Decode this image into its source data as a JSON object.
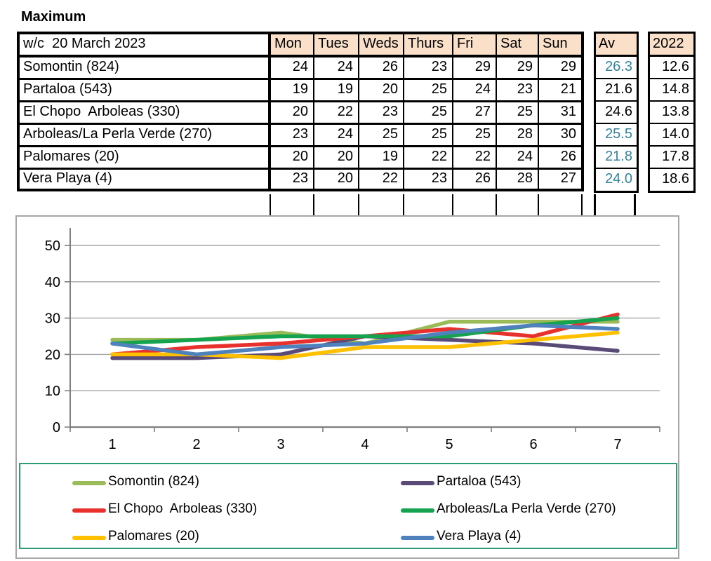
{
  "title": "Maximum",
  "colors": {
    "header_fill": "#fadfc9",
    "table_border": "#000000",
    "teal_value": "#31849b",
    "chart_border": "#a6a6a6",
    "gridline": "#a6a6a6",
    "axis": "#7f7f7f",
    "legend_border": "#2e9c72"
  },
  "table": {
    "week_label": "w/c  20 March 2023",
    "day_headers": [
      "Mon",
      "Tues",
      "Weds",
      "Thurs",
      "Fri",
      "Sat",
      "Sun"
    ],
    "av_header": "Av",
    "prev_year_header": "2022",
    "rows": [
      {
        "name": "Somontin (824)",
        "values": [
          "24",
          "24",
          "26",
          "23",
          "29",
          "29",
          "29"
        ],
        "av": "26.3",
        "av_teal": true,
        "prev": "12.6"
      },
      {
        "name": "Partaloa (543)",
        "values": [
          "19",
          "19",
          "20",
          "25",
          "24",
          "23",
          "21"
        ],
        "av": "21.6",
        "av_teal": false,
        "prev": "14.8"
      },
      {
        "name": "El Chopo  Arboleas (330)",
        "values": [
          "20",
          "22",
          "23",
          "25",
          "27",
          "25",
          "31"
        ],
        "av": "24.6",
        "av_teal": false,
        "prev": "13.8"
      },
      {
        "name": "Arboleas/La Perla Verde (270)",
        "values": [
          "23",
          "24",
          "25",
          "25",
          "25",
          "28",
          "30"
        ],
        "av": "25.5",
        "av_teal": true,
        "prev": "14.0"
      },
      {
        "name": "Palomares (20)",
        "values": [
          "20",
          "20",
          "19",
          "22",
          "22",
          "24",
          "26"
        ],
        "av": "21.8",
        "av_teal": true,
        "prev": "17.8"
      },
      {
        "name": "Vera Playa (4)",
        "values": [
          "23",
          "20",
          "22",
          "23",
          "26",
          "28",
          "27"
        ],
        "av": "24.0",
        "av_teal": true,
        "prev": "18.6"
      }
    ]
  },
  "chart_data": {
    "type": "line",
    "x": [
      1,
      2,
      3,
      4,
      5,
      6,
      7
    ],
    "x_tick_labels": [
      "1",
      "2",
      "3",
      "4",
      "5",
      "6",
      "7"
    ],
    "y_ticks": [
      0,
      10,
      20,
      30,
      40,
      50
    ],
    "ylim": [
      0,
      55
    ],
    "grid": true,
    "legend_position": "bottom",
    "series": [
      {
        "name": "Somontin (824)",
        "color": "#9bbb59",
        "values": [
          24,
          24,
          26,
          23,
          29,
          29,
          29
        ]
      },
      {
        "name": "Partaloa (543)",
        "color": "#5a4a78",
        "values": [
          19,
          19,
          20,
          25,
          24,
          23,
          21
        ]
      },
      {
        "name": "El Chopo  Arboleas (330)",
        "color": "#e8312d",
        "values": [
          20,
          22,
          23,
          25,
          27,
          25,
          31
        ]
      },
      {
        "name": "Arboleas/La Perla Verde (270)",
        "color": "#16a350",
        "values": [
          23,
          24,
          25,
          25,
          25,
          28,
          30
        ]
      },
      {
        "name": "Palomares (20)",
        "color": "#ffc000",
        "values": [
          20,
          20,
          19,
          22,
          22,
          24,
          26
        ]
      },
      {
        "name": "Vera Playa (4)",
        "color": "#4f81bd",
        "values": [
          23,
          20,
          22,
          23,
          26,
          28,
          27
        ]
      }
    ]
  }
}
